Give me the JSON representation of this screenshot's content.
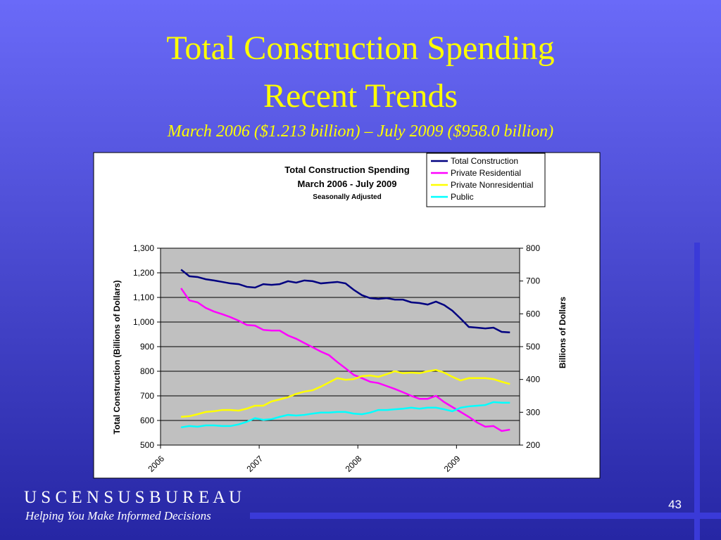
{
  "slide": {
    "title": [
      "Total Construction Spending",
      "Recent Trends"
    ],
    "subtitle": "March 2006 ($1.213 billion) – July 2009 ($958.0 billion)",
    "footer_org": "U S C E N S U S B U R E A U",
    "footer_tagline": "Helping You Make Informed Decisions",
    "page_number": "43"
  },
  "chart_data": {
    "type": "line",
    "title": [
      "Total Construction Spending",
      "March 2006 - July 2009"
    ],
    "subtitle": "Seasonally Adjusted",
    "ylabel": "Total Construction (Billions of Dollars)",
    "y2label": "Billions of Dollars",
    "xlim": [
      2006,
      2009.64
    ],
    "xticks": [
      2006,
      2007,
      2008,
      2009
    ],
    "ylim": [
      500,
      1300
    ],
    "yticks": [
      500,
      600,
      700,
      800,
      900,
      {
        "value": 1000,
        "label": "1,000"
      },
      {
        "value": 1100,
        "label": "1,100"
      },
      {
        "value": 1200,
        "label": "1,200"
      },
      {
        "value": 1300,
        "label": "1,300"
      }
    ],
    "y2lim": [
      200,
      800
    ],
    "y2ticks": [
      200,
      300,
      400,
      500,
      600,
      700,
      800
    ],
    "grid": true,
    "legend": "top-right",
    "x": [
      2006.208,
      2006.292,
      2006.375,
      2006.458,
      2006.542,
      2006.625,
      2006.708,
      2006.792,
      2006.875,
      2006.958,
      2007.042,
      2007.125,
      2007.208,
      2007.292,
      2007.375,
      2007.458,
      2007.542,
      2007.625,
      2007.708,
      2007.792,
      2007.875,
      2007.958,
      2008.042,
      2008.125,
      2008.208,
      2008.292,
      2008.375,
      2008.458,
      2008.542,
      2008.625,
      2008.708,
      2008.792,
      2008.875,
      2008.958,
      2009.042,
      2009.125,
      2009.208,
      2009.292,
      2009.375,
      2009.458,
      2009.542
    ],
    "series": [
      {
        "name": "Total Construction",
        "color": "#000080",
        "axis": "y",
        "values": [
          1213,
          1186,
          1183,
          1174,
          1169,
          1163,
          1157,
          1154,
          1143,
          1140,
          1154,
          1151,
          1154,
          1166,
          1160,
          1169,
          1166,
          1157,
          1160,
          1163,
          1157,
          1131,
          1109,
          1097,
          1094,
          1097,
          1091,
          1091,
          1080,
          1077,
          1071,
          1083,
          1069,
          1046,
          1014,
          980,
          977,
          974,
          977,
          960,
          958
        ]
      },
      {
        "name": "Private Residential",
        "color": "#ff00ff",
        "axis": "y2",
        "values": [
          678,
          641,
          635,
          618,
          607,
          599,
          590,
          579,
          566,
          564,
          551,
          549,
          549,
          534,
          524,
          511,
          498,
          485,
          474,
          453,
          434,
          414,
          404,
          393,
          389,
          380,
          371,
          361,
          350,
          341,
          341,
          350,
          331,
          316,
          301,
          286,
          269,
          256,
          258,
          243,
          247
        ]
      },
      {
        "name": "Private Nonresidential",
        "color": "#ffff00",
        "axis": "y2",
        "values": [
          286,
          288,
          294,
          301,
          303,
          307,
          307,
          305,
          311,
          320,
          320,
          333,
          339,
          346,
          356,
          363,
          367,
          378,
          391,
          404,
          399,
          401,
          410,
          412,
          408,
          416,
          425,
          419,
          421,
          419,
          425,
          429,
          421,
          408,
          397,
          404,
          404,
          404,
          401,
          393,
          386
        ]
      },
      {
        "name": "Public",
        "color": "#00ffff",
        "axis": "y2",
        "values": [
          254,
          258,
          256,
          260,
          260,
          258,
          258,
          263,
          271,
          282,
          277,
          279,
          286,
          292,
          290,
          292,
          296,
          299,
          299,
          301,
          301,
          296,
          294,
          299,
          307,
          307,
          309,
          311,
          314,
          311,
          314,
          314,
          309,
          303,
          314,
          318,
          320,
          322,
          331,
          329,
          329
        ]
      }
    ]
  }
}
